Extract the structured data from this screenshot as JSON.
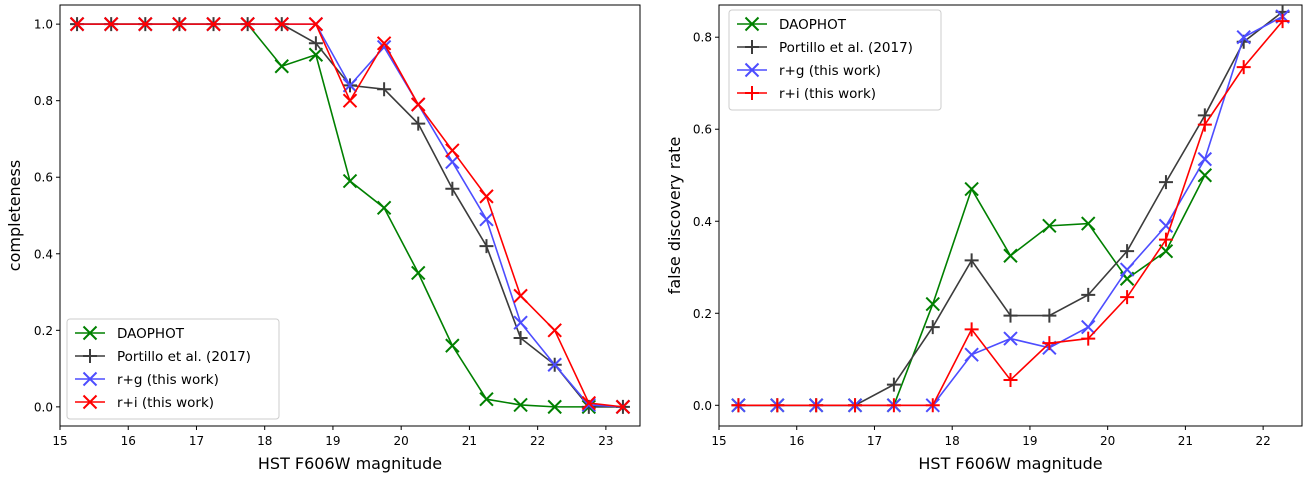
{
  "chart_data": [
    {
      "type": "line",
      "xlabel": "HST F606W magnitude",
      "ylabel": "completeness",
      "xlim": [
        15,
        23.5
      ],
      "ylim": [
        -0.05,
        1.05
      ],
      "xticks": [
        "15",
        "16",
        "17",
        "18",
        "19",
        "20",
        "21",
        "22",
        "23"
      ],
      "yticks": [
        "0.0",
        "0.2",
        "0.4",
        "0.6",
        "0.8",
        "1.0"
      ],
      "legend_position": "lower-left",
      "x": [
        15.25,
        15.75,
        16.25,
        16.75,
        17.25,
        17.75,
        18.25,
        18.75,
        19.25,
        19.75,
        20.25,
        20.75,
        21.25,
        21.75,
        22.25,
        22.75,
        23.25
      ],
      "series": [
        {
          "name": "DAOPHOT",
          "color": "#008000",
          "marker": "x",
          "values": [
            1.0,
            1.0,
            1.0,
            1.0,
            1.0,
            1.0,
            0.89,
            0.92,
            0.59,
            0.52,
            0.35,
            0.16,
            0.02,
            0.005,
            0.0,
            0.0,
            0.0
          ]
        },
        {
          "name": "Portillo et al. (2017)",
          "color": "#3c3c3c",
          "marker": "+",
          "values": [
            1.0,
            1.0,
            1.0,
            1.0,
            1.0,
            1.0,
            1.0,
            0.95,
            0.84,
            0.83,
            0.74,
            0.57,
            0.42,
            0.18,
            0.11,
            0.0,
            0.0
          ]
        },
        {
          "name": "r+g (this work)",
          "color": "#4d4dff",
          "marker": "x",
          "values": [
            1.0,
            1.0,
            1.0,
            1.0,
            1.0,
            1.0,
            1.0,
            1.0,
            0.84,
            0.94,
            0.79,
            0.64,
            0.49,
            0.22,
            0.11,
            0.005,
            0.0
          ]
        },
        {
          "name": "r+i (this work)",
          "color": "#ff0000",
          "marker": "x",
          "values": [
            1.0,
            1.0,
            1.0,
            1.0,
            1.0,
            1.0,
            1.0,
            1.0,
            0.8,
            0.95,
            0.79,
            0.67,
            0.55,
            0.29,
            0.2,
            0.01,
            0.0
          ]
        }
      ]
    },
    {
      "type": "line",
      "xlabel": "HST F606W magnitude",
      "ylabel": "false discovery rate",
      "xlim": [
        15,
        22.5
      ],
      "ylim": [
        -0.045,
        0.87
      ],
      "xticks": [
        "15",
        "16",
        "17",
        "18",
        "19",
        "20",
        "21",
        "22"
      ],
      "yticks": [
        "0.0",
        "0.2",
        "0.4",
        "0.6",
        "0.8"
      ],
      "legend_position": "upper-left",
      "x": [
        15.25,
        15.75,
        16.25,
        16.75,
        17.25,
        17.75,
        18.25,
        18.75,
        19.25,
        19.75,
        20.25,
        20.75,
        21.25,
        21.75,
        22.25
      ],
      "series": [
        {
          "name": "DAOPHOT",
          "color": "#008000",
          "marker": "x",
          "values": [
            0.0,
            0.0,
            0.0,
            0.0,
            0.0,
            0.22,
            0.47,
            0.325,
            0.39,
            0.395,
            0.275,
            0.335,
            0.5,
            null,
            null
          ]
        },
        {
          "name": "Portillo et al. (2017)",
          "color": "#3c3c3c",
          "marker": "+",
          "values": [
            0.0,
            0.0,
            0.0,
            0.0,
            0.045,
            0.17,
            0.315,
            0.195,
            0.195,
            0.24,
            0.335,
            0.485,
            0.63,
            0.79,
            0.855
          ]
        },
        {
          "name": "r+g (this work)",
          "color": "#4d4dff",
          "marker": "x",
          "values": [
            0.0,
            0.0,
            0.0,
            0.0,
            0.0,
            0.0,
            0.11,
            0.145,
            0.125,
            0.17,
            0.295,
            0.39,
            0.535,
            0.8,
            0.845
          ]
        },
        {
          "name": "r+i (this work)",
          "color": "#ff0000",
          "marker": "+",
          "values": [
            0.0,
            0.0,
            0.0,
            0.0,
            0.0,
            0.0,
            0.165,
            0.055,
            0.135,
            0.145,
            0.235,
            0.36,
            0.61,
            0.735,
            0.835
          ]
        }
      ]
    }
  ]
}
